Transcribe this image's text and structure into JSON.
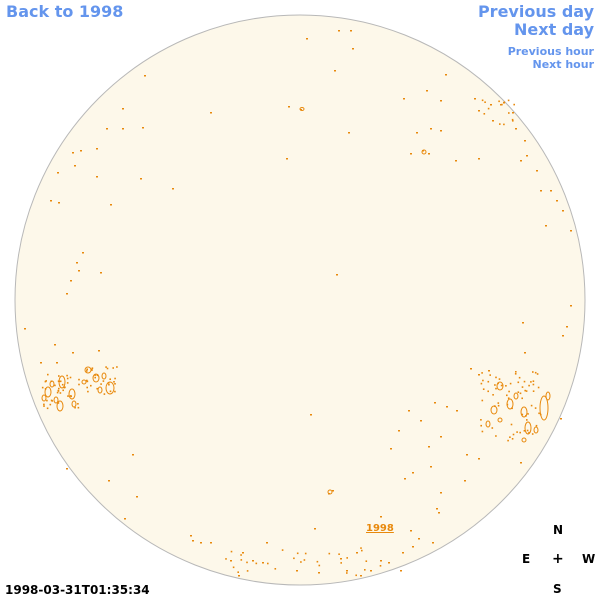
{
  "nav": {
    "back": "Back to 1998",
    "previous_day": "Previous day",
    "next_day": "Next day",
    "previous_hour": "Previous hour",
    "next_hour": "Next hour"
  },
  "timestamp": "1998-03-31T01:35:34",
  "year_label": "1998",
  "compass": {
    "north": "N",
    "east": "E",
    "center": "+",
    "west": "W",
    "south": "S"
  },
  "colors": {
    "disk_fill": "#fdf8ea",
    "disk_outline": "#b8b8b8",
    "feature": "#e8890c",
    "link": "#6495ed"
  }
}
